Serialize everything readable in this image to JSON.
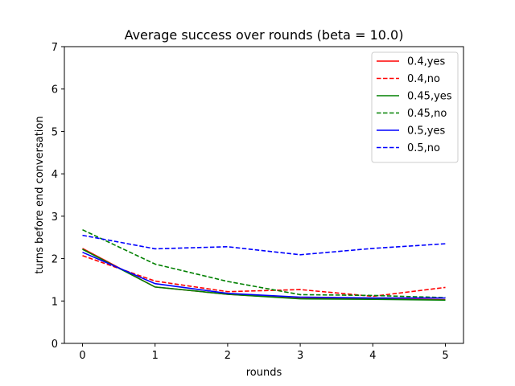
{
  "chart_data": {
    "type": "line",
    "title": "Average success over rounds (beta = 10.0)",
    "xlabel": "rounds",
    "ylabel": "turns before end conversation",
    "x": [
      0,
      1,
      2,
      3,
      4,
      5
    ],
    "xlim": [
      -0.25,
      5.25
    ],
    "ylim": [
      0,
      7
    ],
    "xticks": [
      "0",
      "1",
      "2",
      "3",
      "4",
      "5"
    ],
    "yticks": [
      "0",
      "1",
      "2",
      "3",
      "4",
      "5",
      "6",
      "7"
    ],
    "legend_position": "top-right",
    "grid": false,
    "series": [
      {
        "name": "0.4,yes",
        "color": "#ff0000",
        "style": "solid",
        "values": [
          2.24,
          1.33,
          1.16,
          1.06,
          1.05,
          1.03
        ]
      },
      {
        "name": "0.4,no",
        "color": "#ff0000",
        "style": "dashed",
        "values": [
          2.07,
          1.47,
          1.22,
          1.27,
          1.11,
          1.32
        ]
      },
      {
        "name": "0.45,yes",
        "color": "#008000",
        "style": "solid",
        "values": [
          2.22,
          1.33,
          1.16,
          1.05,
          1.04,
          1.02
        ]
      },
      {
        "name": "0.45,no",
        "color": "#008000",
        "style": "dashed",
        "values": [
          2.68,
          1.87,
          1.46,
          1.15,
          1.13,
          1.08
        ]
      },
      {
        "name": "0.5,yes",
        "color": "#0000ff",
        "style": "solid",
        "values": [
          2.15,
          1.41,
          1.18,
          1.09,
          1.07,
          1.07
        ]
      },
      {
        "name": "0.5,no",
        "color": "#0000ff",
        "style": "dashed",
        "values": [
          2.55,
          2.23,
          2.28,
          2.09,
          2.24,
          2.35
        ]
      }
    ]
  }
}
